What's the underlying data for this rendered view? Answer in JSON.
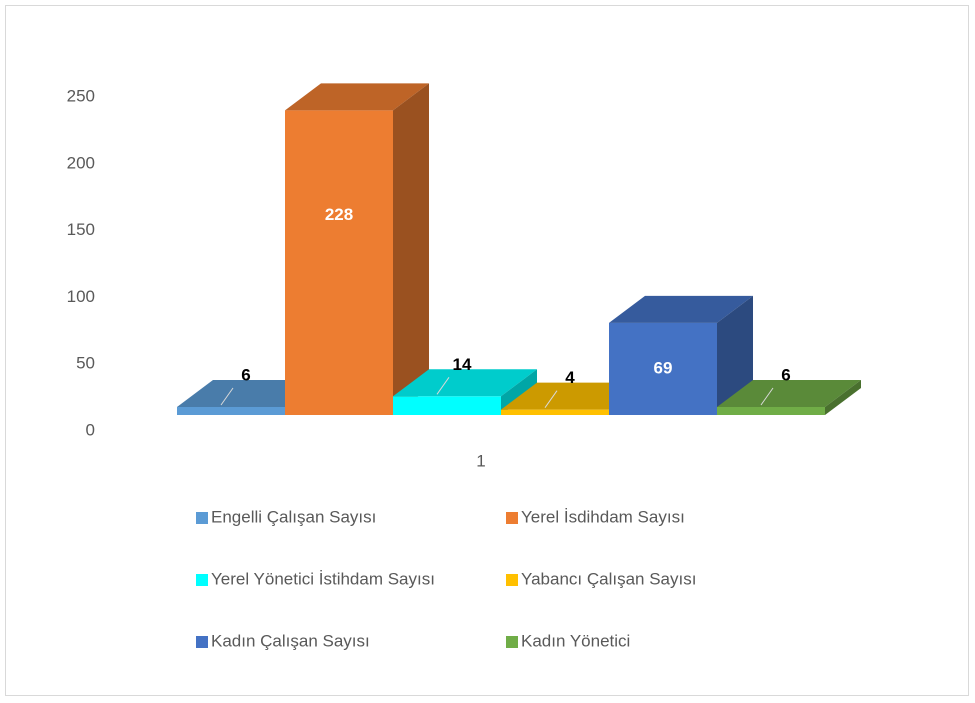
{
  "chart_data": {
    "type": "bar3d",
    "categories": [
      "1"
    ],
    "series": [
      {
        "name": "Engelli Çalışan Sayısı",
        "color": "#5b9bd5",
        "values": [
          6
        ]
      },
      {
        "name": "Yerel İsdihdam Sayısı",
        "color": "#ed7d31",
        "values": [
          228
        ]
      },
      {
        "name": "Yerel Yönetici İstihdam Sayısı",
        "color": "#00ffff",
        "values": [
          14
        ]
      },
      {
        "name": "Yabancı Çalışan Sayısı",
        "color": "#ffc000",
        "values": [
          4
        ]
      },
      {
        "name": "Kadın Çalışan Sayısı",
        "color": "#4472c4",
        "values": [
          69
        ]
      },
      {
        "name": "Kadın Yönetici",
        "color": "#70ad47",
        "values": [
          6
        ]
      }
    ],
    "ylim": [
      0,
      250
    ],
    "yticks": [
      0,
      50,
      100,
      150,
      200,
      250
    ],
    "grid": false,
    "legend": "bottom"
  }
}
